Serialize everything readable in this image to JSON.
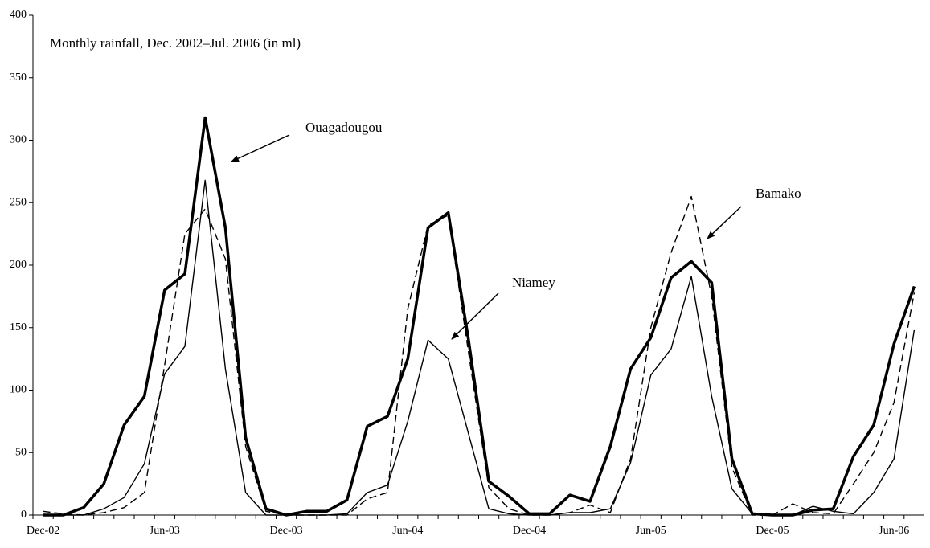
{
  "chart_data": {
    "type": "line",
    "title": "Monthly rainfall, Dec. 2002–Jul. 2006 (in ml)",
    "categories": [
      "Dec-02",
      null,
      null,
      null,
      null,
      null,
      "Jun-03",
      null,
      null,
      null,
      null,
      null,
      "Dec-03",
      null,
      null,
      null,
      null,
      null,
      "Jun-04",
      null,
      null,
      null,
      null,
      null,
      "Dec-04",
      null,
      null,
      null,
      null,
      null,
      "Jun-05",
      null,
      null,
      null,
      null,
      null,
      "Dec-05",
      null,
      null,
      null,
      null,
      null,
      "Jun-06",
      null
    ],
    "series": [
      {
        "name": "Ouagadougou",
        "color": "#000000",
        "line_width": 3.5,
        "dash": false,
        "values": [
          0,
          0,
          6,
          25,
          72,
          95,
          180,
          193,
          318,
          230,
          62,
          5,
          0,
          3,
          3,
          12,
          71,
          79,
          125,
          230,
          242,
          140,
          27,
          15,
          1,
          1,
          16,
          11,
          55,
          117,
          142,
          190,
          203,
          186,
          45,
          1,
          0,
          0,
          4,
          5,
          47,
          72,
          137,
          183
        ]
      },
      {
        "name": "Niamey",
        "color": "#000000",
        "line_width": 1.4,
        "dash": false,
        "values": [
          0,
          0,
          0,
          5,
          14,
          41,
          113,
          135,
          268,
          117,
          18,
          0,
          0,
          0,
          0,
          1,
          18,
          24,
          75,
          140,
          125,
          65,
          5,
          1,
          0,
          0,
          2,
          2,
          5,
          42,
          112,
          133,
          191,
          95,
          21,
          1,
          0,
          0,
          7,
          3,
          1,
          18,
          45,
          148
        ]
      },
      {
        "name": "Bamako",
        "color": "#000000",
        "line_width": 1.4,
        "dash": true,
        "values": [
          3,
          1,
          0,
          2,
          6,
          18,
          120,
          225,
          245,
          205,
          55,
          3,
          0,
          0,
          0,
          0,
          13,
          18,
          165,
          232,
          240,
          130,
          22,
          5,
          0,
          0,
          2,
          8,
          2,
          45,
          150,
          210,
          255,
          175,
          38,
          0,
          0,
          9,
          2,
          1,
          25,
          50,
          90,
          178
        ]
      }
    ],
    "annotations": [
      "Ouagadougou",
      "Niamey",
      "Bamako"
    ],
    "ylim": [
      0,
      400
    ],
    "yticks": [
      0,
      50,
      100,
      150,
      200,
      250,
      300,
      350,
      400
    ],
    "grid": false
  }
}
